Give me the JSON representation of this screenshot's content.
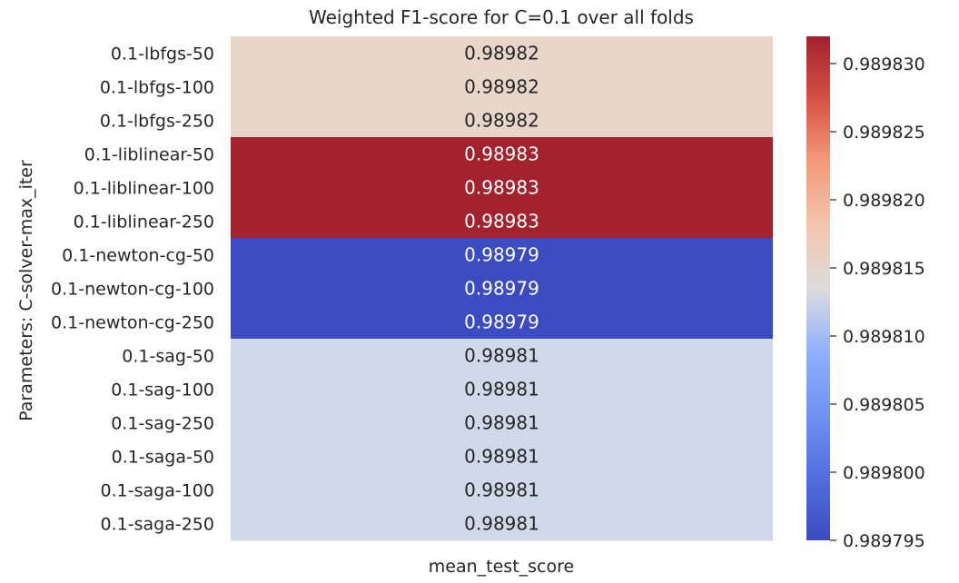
{
  "chart_data": {
    "type": "heatmap",
    "title": "Weighted F1-score for C=0.1 over all folds",
    "xlabel": "mean_test_score",
    "ylabel": "Parameters: C-solver-max_iter",
    "columns": [
      "mean_test_score"
    ],
    "rows": [
      {
        "label": "0.1-lbfgs-50",
        "value": 0.989816,
        "display": "0.98982"
      },
      {
        "label": "0.1-lbfgs-100",
        "value": 0.989816,
        "display": "0.98982"
      },
      {
        "label": "0.1-lbfgs-250",
        "value": 0.989816,
        "display": "0.98982"
      },
      {
        "label": "0.1-liblinear-50",
        "value": 0.989832,
        "display": "0.98983"
      },
      {
        "label": "0.1-liblinear-100",
        "value": 0.989832,
        "display": "0.98983"
      },
      {
        "label": "0.1-liblinear-250",
        "value": 0.989832,
        "display": "0.98983"
      },
      {
        "label": "0.1-newton-cg-50",
        "value": 0.989795,
        "display": "0.98979"
      },
      {
        "label": "0.1-newton-cg-100",
        "value": 0.989795,
        "display": "0.98979"
      },
      {
        "label": "0.1-newton-cg-250",
        "value": 0.989795,
        "display": "0.98979"
      },
      {
        "label": "0.1-sag-50",
        "value": 0.989811,
        "display": "0.98981"
      },
      {
        "label": "0.1-sag-100",
        "value": 0.989811,
        "display": "0.98981"
      },
      {
        "label": "0.1-sag-250",
        "value": 0.989811,
        "display": "0.98981"
      },
      {
        "label": "0.1-saga-50",
        "value": 0.989811,
        "display": "0.98981"
      },
      {
        "label": "0.1-saga-100",
        "value": 0.989811,
        "display": "0.98981"
      },
      {
        "label": "0.1-saga-250",
        "value": 0.989811,
        "display": "0.98981"
      }
    ],
    "colorbar": {
      "colormap": "coolwarm",
      "vmin": 0.989795,
      "vmax": 0.989832,
      "ticks": [
        "0.989795",
        "0.989800",
        "0.989805",
        "0.989810",
        "0.989815",
        "0.989820",
        "0.989825",
        "0.989830"
      ]
    },
    "colors": {
      "0.989795": "#3b4cc0",
      "0.989811": "#cfd9ea",
      "0.989816": "#e8d6cb",
      "0.989832": "#a2222d"
    }
  }
}
